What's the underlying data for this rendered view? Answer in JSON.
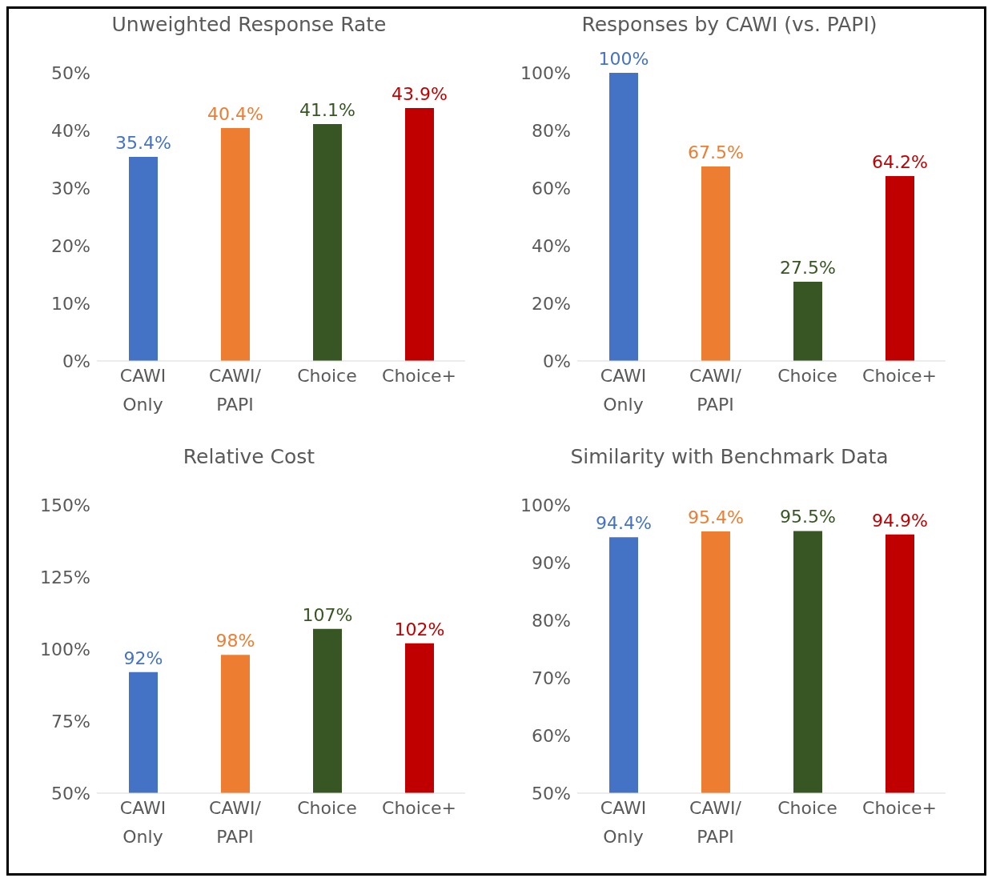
{
  "chart_data": [
    {
      "type": "bar",
      "title": "Unweighted Response Rate",
      "categories": [
        "CAWI Only",
        "CAWI/PAPI",
        "Choice",
        "Choice+"
      ],
      "values": [
        35.4,
        40.4,
        41.1,
        43.9
      ],
      "colors": [
        "#4472c4",
        "#ed7d31",
        "#375623",
        "#c00000"
      ],
      "value_labels": [
        "35.4%",
        "40.4%",
        "41.1%",
        "43.9%"
      ],
      "ylim": [
        0,
        50
      ],
      "yticks": [
        {
          "value": 0,
          "label": "0%"
        },
        {
          "value": 10,
          "label": "10%"
        },
        {
          "value": 20,
          "label": "20%"
        },
        {
          "value": 30,
          "label": "30%"
        },
        {
          "value": 40,
          "label": "40%"
        },
        {
          "value": 50,
          "label": "50%"
        }
      ]
    },
    {
      "type": "bar",
      "title": "Responses by CAWI (vs. PAPI)",
      "categories": [
        "CAWI Only",
        "CAWI/PAPI",
        "Choice",
        "Choice+"
      ],
      "values": [
        100,
        67.5,
        27.5,
        64.2
      ],
      "colors": [
        "#4472c4",
        "#ed7d31",
        "#375623",
        "#c00000"
      ],
      "value_labels": [
        "100%",
        "67.5%",
        "27.5%",
        "64.2%"
      ],
      "ylim": [
        0,
        100
      ],
      "yticks": [
        {
          "value": 0,
          "label": "0%"
        },
        {
          "value": 20,
          "label": "20%"
        },
        {
          "value": 40,
          "label": "40%"
        },
        {
          "value": 60,
          "label": "60%"
        },
        {
          "value": 80,
          "label": "80%"
        },
        {
          "value": 100,
          "label": "100%"
        }
      ]
    },
    {
      "type": "bar",
      "title": "Relative Cost",
      "categories": [
        "CAWI Only",
        "CAWI/PAPI",
        "Choice",
        "Choice+"
      ],
      "values": [
        92,
        98,
        107,
        102
      ],
      "colors": [
        "#4472c4",
        "#ed7d31",
        "#375623",
        "#c00000"
      ],
      "value_labels": [
        "92%",
        "98%",
        "107%",
        "102%"
      ],
      "ylim": [
        50,
        150
      ],
      "yticks": [
        {
          "value": 50,
          "label": "50%"
        },
        {
          "value": 75,
          "label": "75%"
        },
        {
          "value": 100,
          "label": "100%"
        },
        {
          "value": 125,
          "label": "125%"
        },
        {
          "value": 150,
          "label": "150%"
        }
      ]
    },
    {
      "type": "bar",
      "title": "Similarity with Benchmark Data",
      "categories": [
        "CAWI Only",
        "CAWI/PAPI",
        "Choice",
        "Choice+"
      ],
      "values": [
        94.4,
        95.4,
        95.5,
        94.9
      ],
      "colors": [
        "#4472c4",
        "#ed7d31",
        "#375623",
        "#c00000"
      ],
      "value_labels": [
        "94.4%",
        "95.4%",
        "95.5%",
        "94.9%"
      ],
      "ylim": [
        50,
        100
      ],
      "yticks": [
        {
          "value": 50,
          "label": "50%"
        },
        {
          "value": 60,
          "label": "60%"
        },
        {
          "value": 70,
          "label": "70%"
        },
        {
          "value": 80,
          "label": "80%"
        },
        {
          "value": 90,
          "label": "90%"
        },
        {
          "value": 100,
          "label": "100%"
        }
      ]
    }
  ]
}
